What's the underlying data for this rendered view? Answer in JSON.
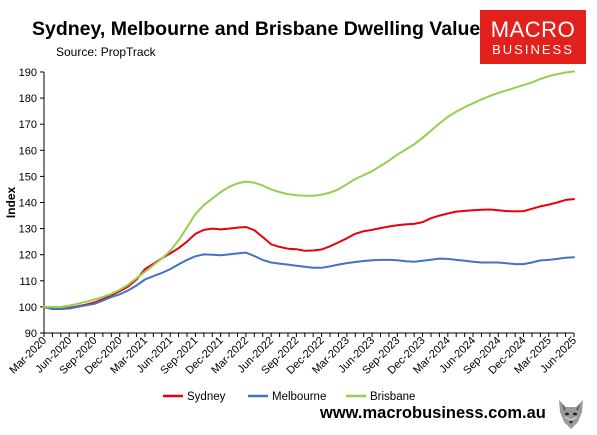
{
  "header": {
    "title": "Sydney, Melbourne and Brisbane Dwelling Values",
    "source": "Source: PropTrack"
  },
  "logo": {
    "line1": "MACRO",
    "line2": "BUSINESS",
    "color": "#e3211c"
  },
  "footer": {
    "website": "www.macrobusiness.com.au"
  },
  "chart_data": {
    "type": "line",
    "title": "Sydney, Melbourne and Brisbane Dwelling Values",
    "subtitle": "Source: PropTrack",
    "xlabel": "",
    "ylabel": "Index",
    "ylim": [
      90,
      190
    ],
    "yticks": [
      90,
      100,
      110,
      120,
      130,
      140,
      150,
      160,
      170,
      180,
      190
    ],
    "grid": false,
    "legend": "bottom",
    "x": [
      "Mar-2020",
      "Apr-2020",
      "May-2020",
      "Jun-2020",
      "Jul-2020",
      "Aug-2020",
      "Sep-2020",
      "Oct-2020",
      "Nov-2020",
      "Dec-2020",
      "Jan-2021",
      "Feb-2021",
      "Mar-2021",
      "Apr-2021",
      "May-2021",
      "Jun-2021",
      "Jul-2021",
      "Aug-2021",
      "Sep-2021",
      "Oct-2021",
      "Nov-2021",
      "Dec-2021",
      "Jan-2022",
      "Feb-2022",
      "Mar-2022",
      "Apr-2022",
      "May-2022",
      "Jun-2022",
      "Jul-2022",
      "Aug-2022",
      "Sep-2022",
      "Oct-2022",
      "Nov-2022",
      "Dec-2022",
      "Jan-2023",
      "Feb-2023",
      "Mar-2023",
      "Apr-2023",
      "May-2023",
      "Jun-2023",
      "Jul-2023",
      "Aug-2023",
      "Sep-2023",
      "Oct-2023",
      "Nov-2023",
      "Dec-2023",
      "Jan-2024",
      "Feb-2024",
      "Mar-2024",
      "Apr-2024",
      "May-2024",
      "Jun-2024",
      "Jul-2024",
      "Aug-2024",
      "Sep-2024",
      "Oct-2024",
      "Nov-2024",
      "Dec-2024",
      "Jan-2025",
      "Feb-2025",
      "Mar-2025",
      "Apr-2025",
      "May-2025",
      "Jun-2025"
    ],
    "xtick_labels": [
      "Mar-2020",
      "Jun-2020",
      "Sep-2020",
      "Dec-2020",
      "Mar-2021",
      "Jun-2021",
      "Sep-2021",
      "Dec-2021",
      "Mar-2022",
      "Jun-2022",
      "Sep-2022",
      "Dec-2022",
      "Mar-2023",
      "Jun-2023",
      "Sep-2023",
      "Dec-2023",
      "Mar-2024",
      "Jun-2024",
      "Sep-2024",
      "Dec-2024",
      "Mar-2025",
      "Jun-2025"
    ],
    "series": [
      {
        "name": "Sydney",
        "color": "#e8000d",
        "values": [
          100,
          99.2,
          99.2,
          99.6,
          100.2,
          100.9,
          101.7,
          103,
          104.5,
          106,
          107.8,
          110.5,
          114.5,
          116.5,
          118.6,
          120.5,
          122.5,
          125,
          128,
          129.5,
          130,
          129.7,
          130,
          130.4,
          130.6,
          129.4,
          126.8,
          124,
          123,
          122.3,
          122.1,
          121.5,
          121.6,
          122,
          123.2,
          124.7,
          126.3,
          128,
          129,
          129.5,
          130.2,
          130.8,
          131.3,
          131.6,
          131.8,
          132.5,
          134,
          135,
          135.8,
          136.5,
          136.8,
          137,
          137.2,
          137.3,
          137,
          136.7,
          136.6,
          136.7,
          137.6,
          138.5,
          139.2,
          140,
          141,
          141.3
        ]
      },
      {
        "name": "Melbourne",
        "color": "#4472c4",
        "values": [
          100,
          99.2,
          99.2,
          99.4,
          100,
          100.6,
          101.2,
          102.4,
          103.8,
          104.8,
          106.3,
          108.2,
          110.5,
          111.8,
          113,
          114.5,
          116.3,
          118,
          119.4,
          120.1,
          120,
          119.8,
          120.1,
          120.5,
          120.8,
          119.5,
          118,
          117,
          116.6,
          116.2,
          115.8,
          115.4,
          115,
          115,
          115.5,
          116.2,
          116.8,
          117.2,
          117.6,
          117.9,
          118,
          118,
          117.9,
          117.5,
          117.3,
          117.7,
          118.1,
          118.5,
          118.4,
          118,
          117.7,
          117.3,
          117,
          117,
          117,
          116.7,
          116.4,
          116.4,
          117,
          117.8,
          118,
          118.4,
          118.8,
          119
        ]
      },
      {
        "name": "Brisbane",
        "color": "#92d050",
        "values": [
          100,
          100,
          100,
          100.5,
          101.2,
          102,
          102.8,
          103.8,
          105,
          106.5,
          108.5,
          111,
          113.5,
          116,
          118.5,
          121.5,
          125.5,
          130.5,
          135.5,
          139,
          141.5,
          144,
          146,
          147.3,
          148,
          147.6,
          146.5,
          145,
          144,
          143.2,
          142.8,
          142.6,
          142.6,
          143,
          143.8,
          145,
          147,
          149,
          150.5,
          152,
          154,
          156,
          158.3,
          160.3,
          162.3,
          164.8,
          167.5,
          170.3,
          172.8,
          174.8,
          176.5,
          178,
          179.5,
          180.8,
          182,
          183,
          184,
          185,
          186,
          187.3,
          188.4,
          189.2,
          189.8,
          190.2
        ]
      }
    ]
  }
}
